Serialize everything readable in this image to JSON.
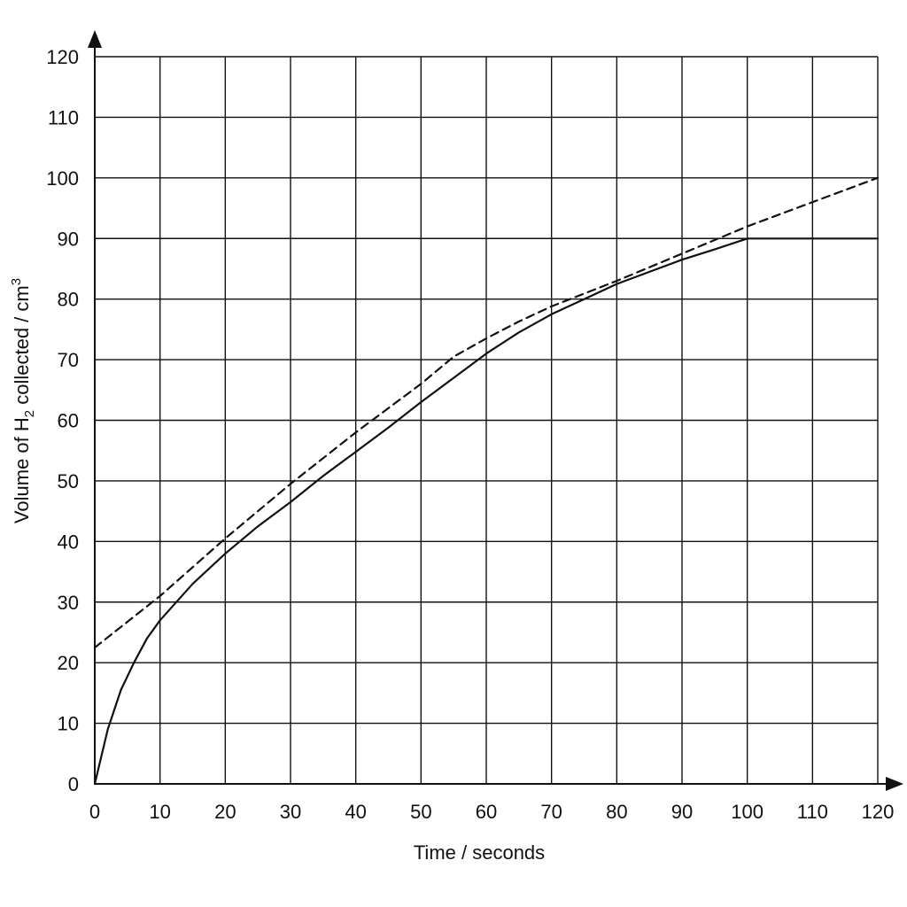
{
  "chart_data": {
    "type": "line",
    "title": "",
    "xlabel": "Time / seconds",
    "ylabel": {
      "prefix": "Volume of H",
      "subscript": "2",
      "middle": " collected / cm",
      "superscript": "3"
    },
    "xlim": [
      0,
      120
    ],
    "ylim": [
      0,
      120
    ],
    "xticks": [
      0,
      10,
      20,
      30,
      40,
      50,
      60,
      70,
      80,
      90,
      100,
      110,
      120
    ],
    "yticks": [
      0,
      10,
      20,
      30,
      40,
      50,
      60,
      70,
      80,
      90,
      100,
      110,
      120
    ],
    "grid": true,
    "legend": "none",
    "series": [
      {
        "style": "solid",
        "color": "#111111",
        "x": [
          0,
          2,
          4,
          6,
          8,
          10,
          15,
          20,
          25,
          30,
          35,
          40,
          45,
          50,
          55,
          60,
          65,
          70,
          75,
          80,
          85,
          90,
          95,
          100,
          110,
          120
        ],
        "y": [
          0,
          9,
          15.5,
          20,
          24,
          27,
          33,
          38,
          42.5,
          46.5,
          50.8,
          54.8,
          58.8,
          63,
          67,
          71,
          74.5,
          77.5,
          80,
          82.5,
          84.5,
          86.5,
          88.2,
          90,
          90,
          90
        ]
      },
      {
        "style": "dashed",
        "color": "#111111",
        "x": [
          0,
          10,
          20,
          30,
          40,
          50,
          55,
          60,
          65,
          70,
          80,
          90,
          100,
          110,
          120
        ],
        "y": [
          22.5,
          31,
          40.5,
          49.5,
          58,
          66,
          70.5,
          73.5,
          76.3,
          78.8,
          83,
          87.5,
          92,
          96,
          100
        ]
      }
    ]
  }
}
